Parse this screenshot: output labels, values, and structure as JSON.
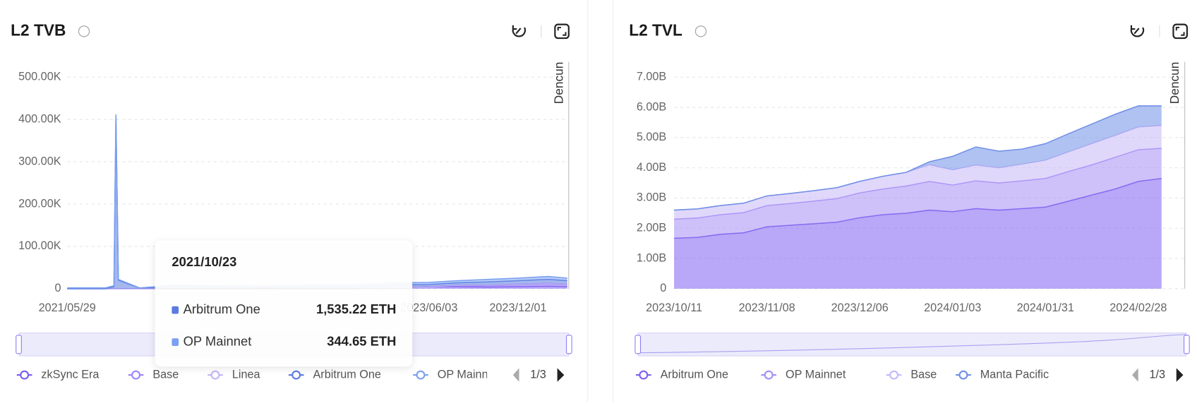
{
  "chart_data": [
    {
      "type": "stacked-area",
      "title": "L2 TVB",
      "annotation": "Dencun",
      "xlim": [
        "2021/05/29",
        "2024/03/13"
      ],
      "xticks": [
        "2021/05/29",
        "2023/06/03",
        "2023/12/01"
      ],
      "ylim": [
        0,
        500000
      ],
      "yticks": [
        0,
        {
          "value": 100000,
          "label": "100.00K"
        },
        {
          "value": 200000,
          "label": "200.00K"
        },
        {
          "value": 300000,
          "label": "300.00K"
        },
        {
          "value": 400000,
          "label": "400.00K"
        },
        {
          "value": 500000,
          "label": "500.00K"
        }
      ],
      "grid": true,
      "x": [
        "2021/05/29",
        "2021/08/15",
        "2021/09/01",
        "2021/09/05",
        "2021/09/10",
        "2021/10/23",
        "2022/01/01",
        "2022/04/01",
        "2022/07/01",
        "2022/10/01",
        "2023/01/01",
        "2023/04/01",
        "2023/06/03",
        "2023/08/01",
        "2023/10/01",
        "2023/12/01",
        "2024/02/01",
        "2024/03/10"
      ],
      "series": [
        {
          "name": "zkSync Era",
          "color": "#7b5cf0",
          "values": [
            0,
            0,
            0,
            0,
            0,
            0,
            0,
            0,
            0,
            0,
            0,
            3000,
            5000,
            5000,
            4000,
            5000,
            6000,
            5000
          ]
        },
        {
          "name": "Base",
          "color": "#9d85f5",
          "values": [
            0,
            0,
            0,
            0,
            0,
            0,
            0,
            0,
            0,
            0,
            0,
            0,
            0,
            2000,
            3000,
            4000,
            5000,
            4000
          ]
        },
        {
          "name": "Linea",
          "color": "#c4b5f7",
          "values": [
            0,
            0,
            0,
            0,
            0,
            0,
            0,
            0,
            0,
            0,
            0,
            0,
            0,
            1000,
            2000,
            2000,
            2000,
            2000
          ]
        },
        {
          "name": "Arbitrum One",
          "color": "#5b7be0",
          "values": [
            0,
            0,
            5000,
            410000,
            20000,
            1535.22,
            5000,
            4000,
            3000,
            4000,
            5000,
            6000,
            5000,
            6000,
            7000,
            8000,
            9000,
            8000
          ]
        },
        {
          "name": "OP Mainnet",
          "color": "#7aa0f0",
          "values": [
            2000,
            2000,
            2000,
            2000,
            2000,
            344.65,
            3000,
            3000,
            3000,
            4000,
            4000,
            5000,
            5000,
            5000,
            6000,
            6000,
            7000,
            6000
          ]
        }
      ],
      "legend_page": "1/3",
      "tooltip": {
        "date": "2021/10/23",
        "items": [
          {
            "name": "Arbitrum One",
            "label": "1,535.22 ETH",
            "color": "#5b7be0"
          },
          {
            "name": "OP Mainnet",
            "label": "344.65 ETH",
            "color": "#7aa0f0"
          }
        ]
      }
    },
    {
      "type": "stacked-area",
      "title": "L2 TVL",
      "annotation": "Dencun",
      "xlim": [
        "2023/10/11",
        "2024/03/13"
      ],
      "xticks": [
        "2023/10/11",
        "2023/11/08",
        "2023/12/06",
        "2024/01/03",
        "2024/01/31",
        "2024/02/28"
      ],
      "ylim": [
        0,
        7000000000
      ],
      "yticks": [
        0,
        {
          "value": 1000000000,
          "label": "1.00B"
        },
        {
          "value": 2000000000,
          "label": "2.00B"
        },
        {
          "value": 3000000000,
          "label": "3.00B"
        },
        {
          "value": 4000000000,
          "label": "4.00B"
        },
        {
          "value": 5000000000,
          "label": "5.00B"
        },
        {
          "value": 6000000000,
          "label": "6.00B"
        },
        {
          "value": 7000000000,
          "label": "7.00B"
        }
      ],
      "grid": true,
      "x": [
        "2023/10/11",
        "2023/10/18",
        "2023/10/25",
        "2023/11/01",
        "2023/11/08",
        "2023/11/15",
        "2023/11/22",
        "2023/11/29",
        "2023/12/06",
        "2023/12/13",
        "2023/12/20",
        "2023/12/27",
        "2024/01/03",
        "2024/01/10",
        "2024/01/17",
        "2024/01/24",
        "2024/01/31",
        "2024/02/07",
        "2024/02/14",
        "2024/02/21",
        "2024/02/28",
        "2024/03/06"
      ],
      "series": [
        {
          "name": "Arbitrum One",
          "color": "#7f5ff0",
          "values": [
            1670000000.0,
            1700000000.0,
            1800000000.0,
            1850000000.0,
            2050000000.0,
            2100000000.0,
            2150000000.0,
            2200000000.0,
            2350000000.0,
            2450000000.0,
            2500000000.0,
            2600000000.0,
            2550000000.0,
            2650000000.0,
            2600000000.0,
            2650000000.0,
            2700000000.0,
            2900000000.0,
            3100000000.0,
            3300000000.0,
            3550000000.0,
            3650000000.0
          ]
        },
        {
          "name": "OP Mainnet",
          "color": "#a58ef6",
          "values": [
            630000000.0,
            640000000.0,
            650000000.0,
            670000000.0,
            700000000.0,
            720000000.0,
            750000000.0,
            780000000.0,
            820000000.0,
            850000000.0,
            900000000.0,
            950000000.0,
            880000000.0,
            920000000.0,
            900000000.0,
            920000000.0,
            950000000.0,
            980000000.0,
            1000000000.0,
            1050000000.0,
            1050000000.0,
            1000000000.0
          ]
        },
        {
          "name": "Base",
          "color": "#c6b8f8",
          "values": [
            300000000.0,
            300000000.0,
            300000000.0,
            310000000.0,
            320000000.0,
            330000000.0,
            340000000.0,
            360000000.0,
            380000000.0,
            420000000.0,
            450000000.0,
            550000000.0,
            500000000.0,
            520000000.0,
            500000000.0,
            550000000.0,
            600000000.0,
            650000000.0,
            700000000.0,
            720000000.0,
            750000000.0,
            750000000.0
          ]
        },
        {
          "name": "Manta Pacific",
          "color": "#6f8fe6",
          "values": [
            0,
            0,
            0,
            0,
            0,
            0,
            0,
            0,
            0,
            0,
            0,
            100000000.0,
            450000000.0,
            600000000.0,
            550000000.0,
            500000000.0,
            550000000.0,
            600000000.0,
            650000000.0,
            700000000.0,
            700000000.0,
            650000000.0
          ]
        }
      ],
      "legend_page": "1/3"
    }
  ]
}
